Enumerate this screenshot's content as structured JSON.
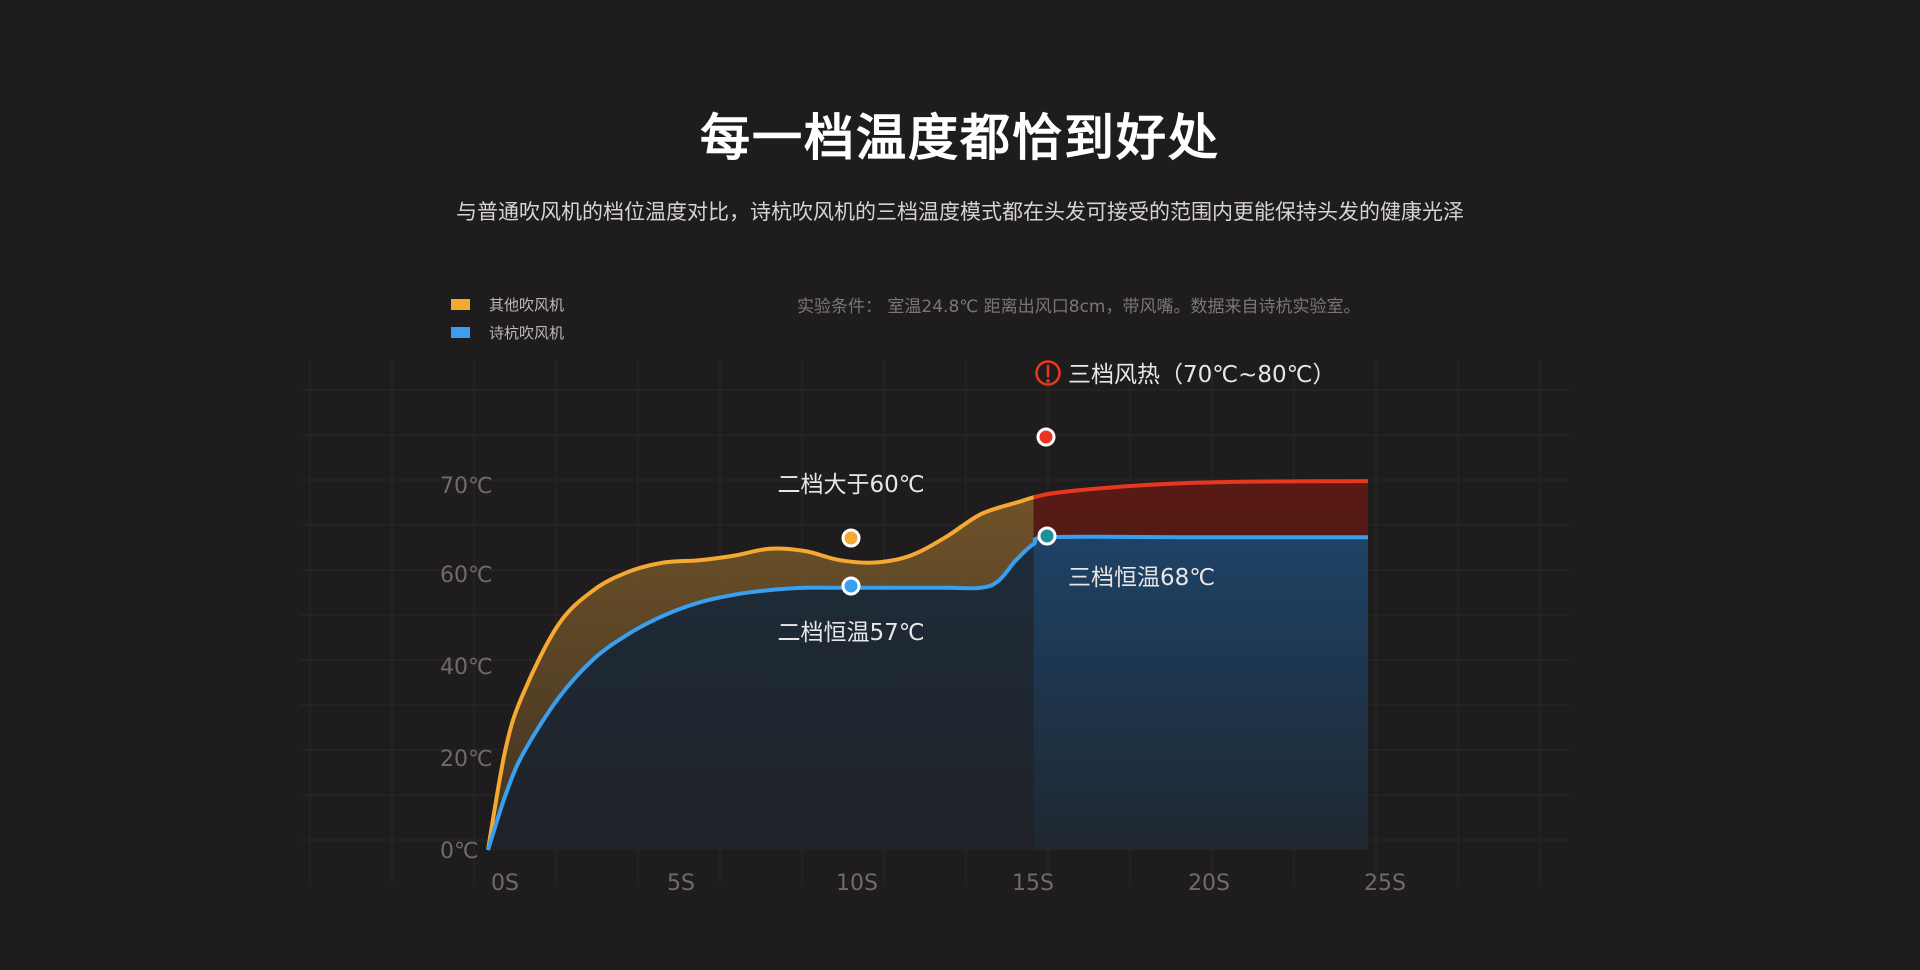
{
  "header": {
    "title": "每一档温度都恰到好处",
    "subtitle": "与普通吹风机的档位温度对比，诗杭吹风机的三档温度模式都在头发可接受的范围内更能保持头发的健康光泽",
    "condition": "实验条件： 室温24.8℃  距离出风口8cm，带风嘴。数据来自诗杭实验室。"
  },
  "colors": {
    "background": "#1f1c1d",
    "other": "#f5a832",
    "shihang": "#39a0f0",
    "hot": "#e8371e"
  },
  "chart_data": {
    "type": "line",
    "x_unit": "S",
    "xlim": [
      0,
      25
    ],
    "x_ticks": [
      0,
      5,
      10,
      15,
      20,
      25
    ],
    "x_tick_labels": [
      "0S",
      "5S",
      "10S",
      "15S",
      "20S",
      "25S"
    ],
    "y_ticks": [
      0,
      20,
      40,
      60,
      70
    ],
    "y_tick_labels": [
      "0℃",
      "20℃",
      "40℃",
      "60℃",
      "70℃"
    ],
    "grid": true,
    "legend": "top-left",
    "series": [
      {
        "name": "其他吹风机",
        "color": "#f5a832",
        "x": [
          0,
          0.5,
          1,
          2,
          3,
          4,
          5,
          6,
          7,
          8,
          9,
          10,
          11,
          12,
          13,
          14,
          15,
          16,
          18,
          20,
          22,
          25
        ],
        "y": [
          0,
          22,
          34,
          49,
          56.5,
          60.5,
          62.5,
          63,
          64,
          65.5,
          65,
          63,
          62.5,
          64,
          68,
          73,
          75.5,
          77.5,
          79,
          79.8,
          80.1,
          80.2
        ]
      },
      {
        "name": "诗杭吹风机",
        "color": "#39a0f0",
        "x": [
          0,
          0.5,
          1,
          2,
          3,
          4,
          5,
          6,
          7,
          8,
          9,
          10,
          11,
          12,
          13,
          14,
          14.5,
          15,
          15.5,
          16,
          20,
          25
        ],
        "y": [
          0,
          12,
          21,
          33,
          41.5,
          47,
          51,
          53.8,
          55.5,
          56.5,
          57,
          57,
          57,
          57,
          57,
          57,
          58.5,
          63,
          66.5,
          68,
          68,
          68
        ]
      }
    ],
    "markers": [
      {
        "series": 0,
        "x": 10,
        "y": 63,
        "label": "二档大于60℃"
      },
      {
        "series": 1,
        "x": 10,
        "y": 57,
        "label": "二档恒温57℃"
      },
      {
        "series": 0,
        "x": 16,
        "y": 77.5
      },
      {
        "series": 1,
        "x": 16,
        "y": 68,
        "label": "三档恒温68℃"
      }
    ],
    "annotation": {
      "icon": "alert-circle-icon",
      "text": "三档风热（70℃~80℃）"
    }
  }
}
